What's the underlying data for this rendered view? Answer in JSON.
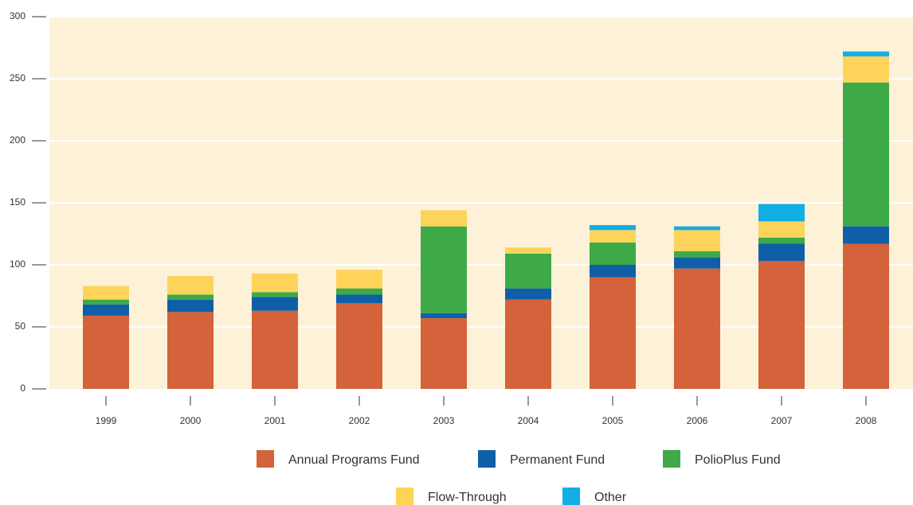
{
  "chart_data": {
    "type": "stacked_bar",
    "categories": [
      "1999",
      "2000",
      "2001",
      "2002",
      "2003",
      "2004",
      "2005",
      "2006",
      "2007",
      "2008"
    ],
    "series": [
      {
        "name": "Annual Programs Fund",
        "color": "#d4623a",
        "values": [
          59,
          62,
          63,
          69,
          57,
          72,
          90,
          97,
          103,
          117
        ]
      },
      {
        "name": "Permanent Fund",
        "color": "#0f5fa8",
        "values": [
          9,
          10,
          11,
          7,
          4,
          9,
          10,
          9,
          14,
          14
        ]
      },
      {
        "name": "PolioPlus Fund",
        "color": "#3daa47",
        "values": [
          4,
          4,
          4,
          5,
          70,
          28,
          18,
          5,
          5,
          116
        ]
      },
      {
        "name": "Flow-Through",
        "color": "#fdd35a",
        "values": [
          11,
          15,
          15,
          15,
          13,
          5,
          10,
          17,
          13,
          21
        ]
      },
      {
        "name": "Other",
        "color": "#12aee6",
        "values": [
          0,
          0,
          0,
          0,
          0,
          0,
          4,
          3,
          14,
          4
        ]
      }
    ],
    "ylim": [
      0,
      300
    ],
    "yticks": [
      0,
      50,
      100,
      150,
      200,
      250,
      300
    ],
    "grid": true
  }
}
